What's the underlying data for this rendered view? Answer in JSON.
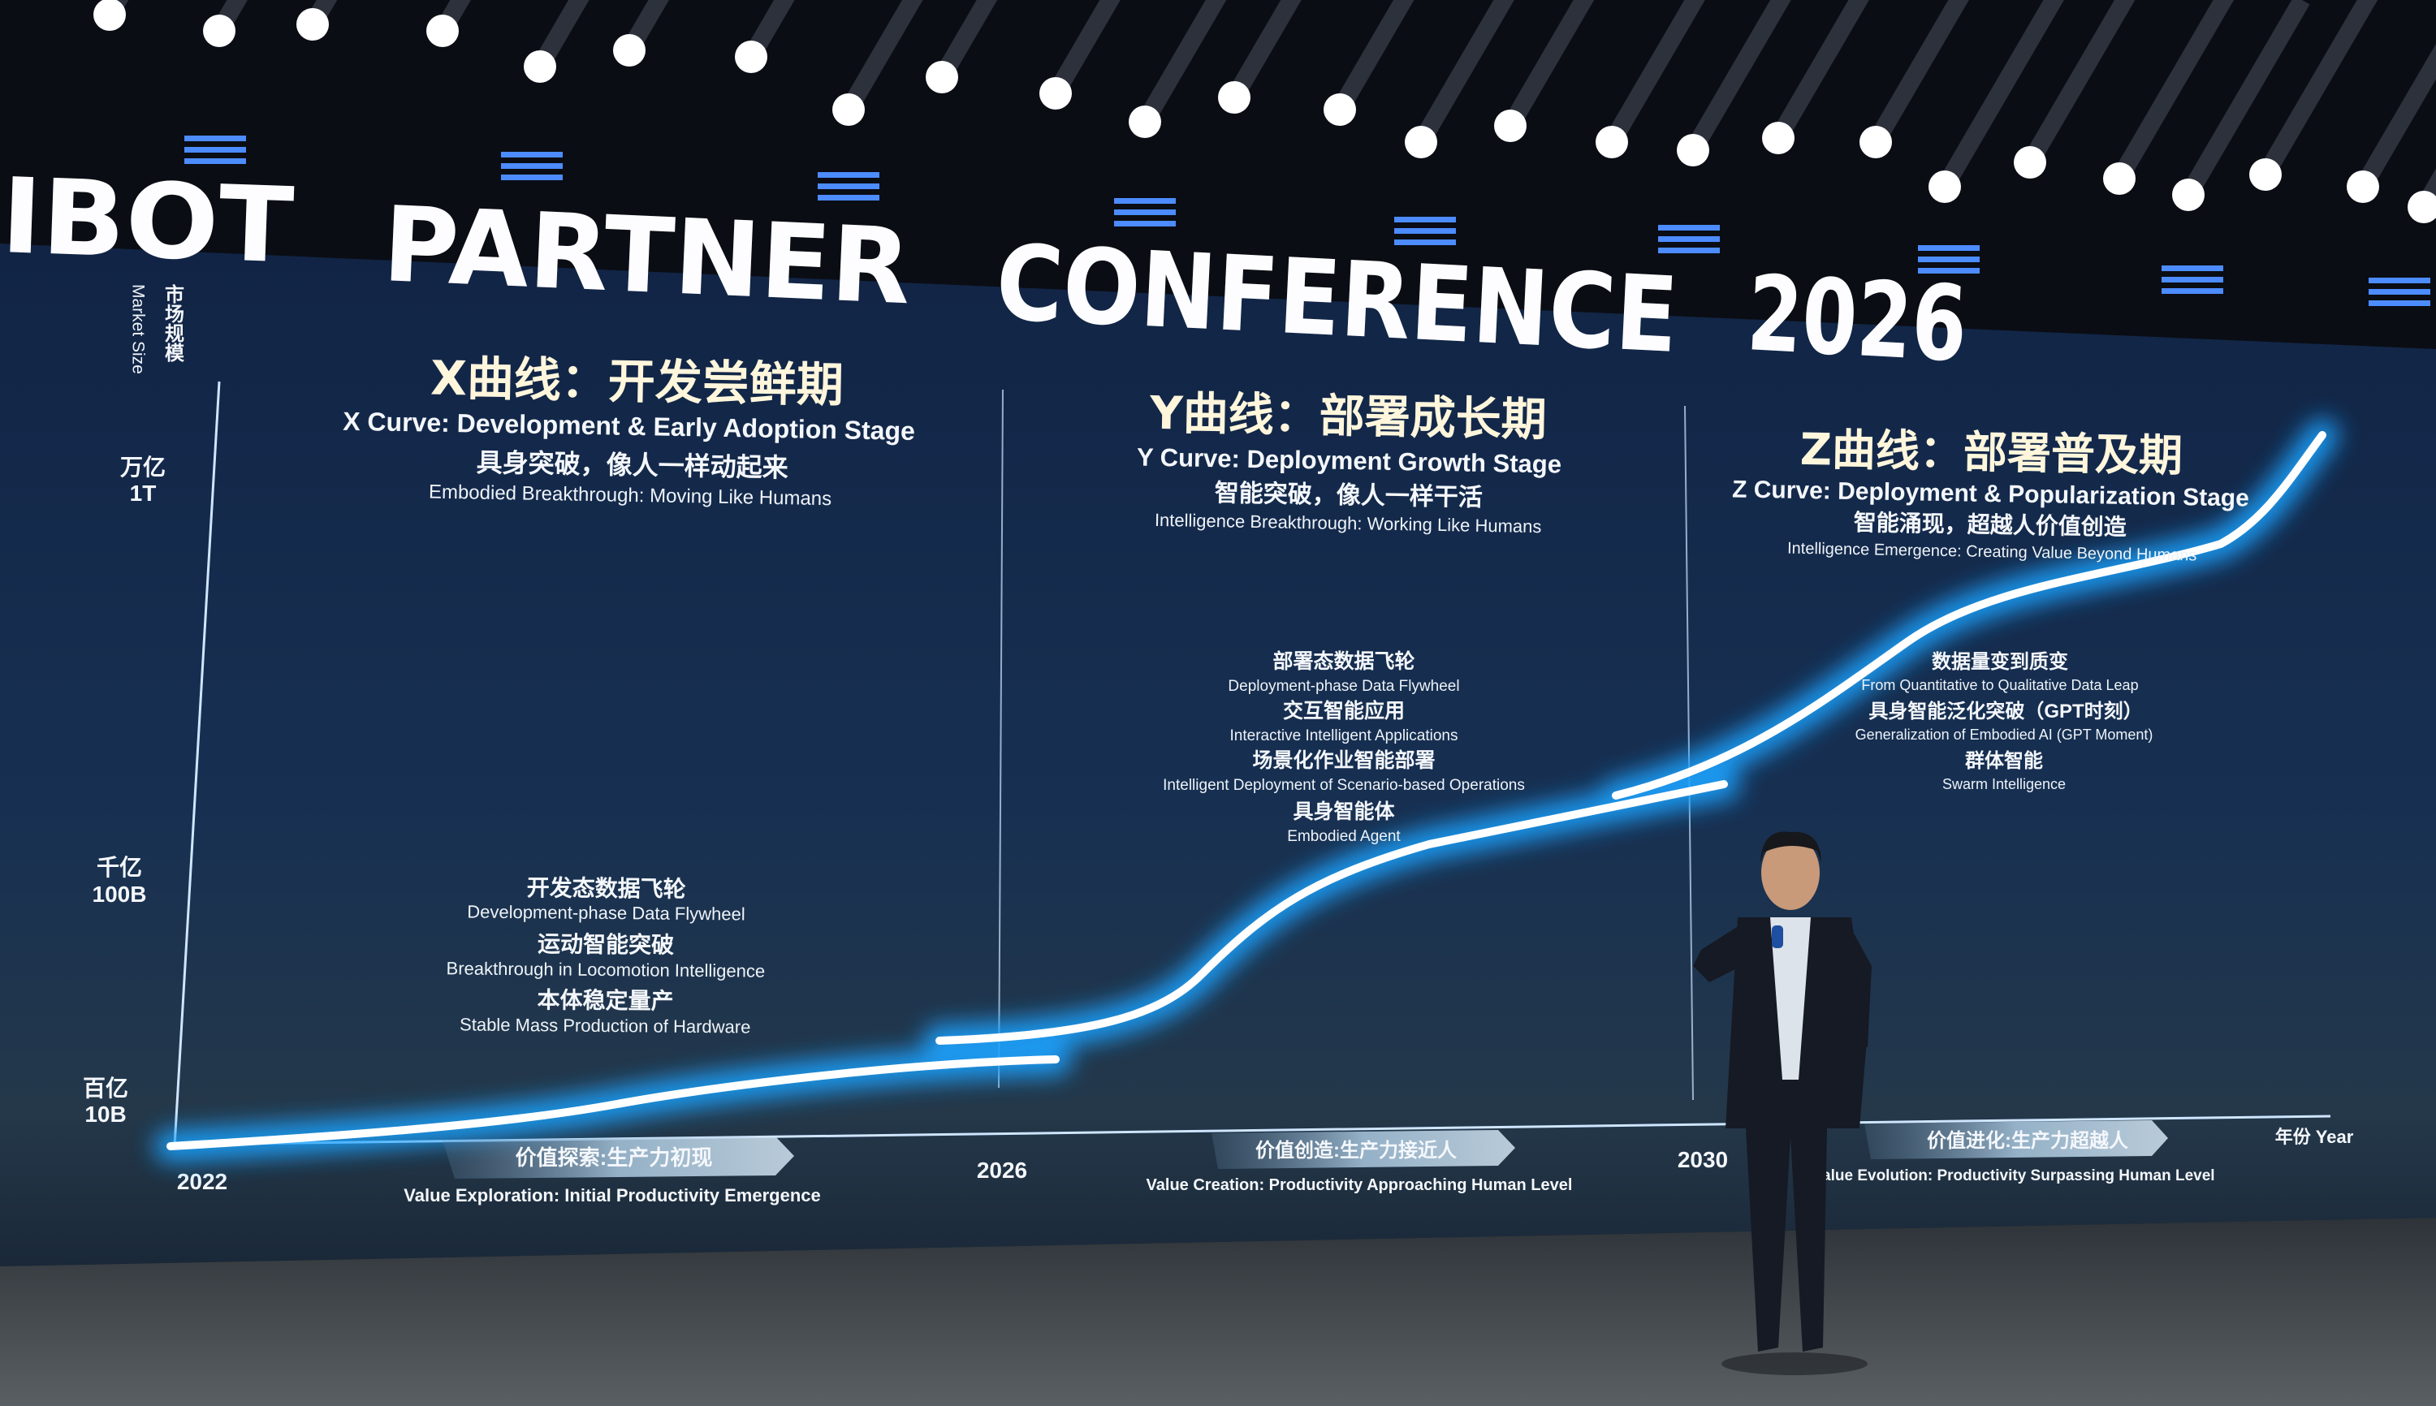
{
  "banner": {
    "words": [
      "IBOT",
      "PARTNER",
      "CONFERENCE",
      "2026"
    ]
  },
  "slide": {
    "y_axis": {
      "label_cn": "市场规模",
      "label_en": "Market Size",
      "ticks": [
        {
          "cn": "万亿",
          "en": "1T"
        },
        {
          "cn": "千亿",
          "en": "100B"
        },
        {
          "cn": "百亿",
          "en": "10B"
        }
      ]
    },
    "x_axis": {
      "label": "年份 Year",
      "ticks": [
        "2022",
        "2026",
        "2030"
      ]
    },
    "stages": [
      {
        "title_cn": "X曲线：开发尝鲜期",
        "title_en": "X Curve: Development & Early Adoption Stage",
        "tagline_cn": "具身突破，像人一样动起来",
        "tagline_en": "Embodied Breakthrough: Moving Like Humans",
        "items": [
          {
            "cn": "开发态数据飞轮",
            "en": "Development-phase Data Flywheel"
          },
          {
            "cn": "运动智能突破",
            "en": "Breakthrough in Locomotion Intelligence"
          },
          {
            "cn": "本体稳定量产",
            "en": "Stable Mass Production of Hardware"
          }
        ],
        "value_cn": "价值探索:生产力初现",
        "value_en": "Value Exploration: Initial Productivity Emergence"
      },
      {
        "title_cn": "Y曲线：部署成长期",
        "title_en": "Y Curve: Deployment Growth Stage",
        "tagline_cn": "智能突破，像人一样干活",
        "tagline_en": "Intelligence Breakthrough: Working Like Humans",
        "items": [
          {
            "cn": "部署态数据飞轮",
            "en": "Deployment-phase Data Flywheel"
          },
          {
            "cn": "交互智能应用",
            "en": "Interactive Intelligent Applications"
          },
          {
            "cn": "场景化作业智能部署",
            "en": "Intelligent Deployment of Scenario-based Operations"
          },
          {
            "cn": "具身智能体",
            "en": "Embodied Agent"
          }
        ],
        "value_cn": "价值创造:生产力接近人",
        "value_en": "Value Creation: Productivity Approaching Human Level"
      },
      {
        "title_cn": "Z曲线：部署普及期",
        "title_en": "Z Curve: Deployment & Popularization Stage",
        "tagline_cn": "智能涌现，超越人价值创造",
        "tagline_en": "Intelligence Emergence: Creating Value Beyond Humans",
        "items": [
          {
            "cn": "数据量变到质变",
            "en": "From Quantitative to Qualitative Data Leap"
          },
          {
            "cn": "具身智能泛化突破（GPT时刻）",
            "en": "Generalization of Embodied AI (GPT Moment)"
          },
          {
            "cn": "群体智能",
            "en": "Swarm Intelligence"
          }
        ],
        "value_cn": "价值进化:生产力超越人",
        "value_en": "Value Evolution: Productivity Surpassing Human Level"
      }
    ]
  },
  "colors": {
    "screen": "#14284a",
    "curve_glow": "#1aa3ff",
    "curve_core": "#ffffff",
    "title": "#fff6dc"
  }
}
